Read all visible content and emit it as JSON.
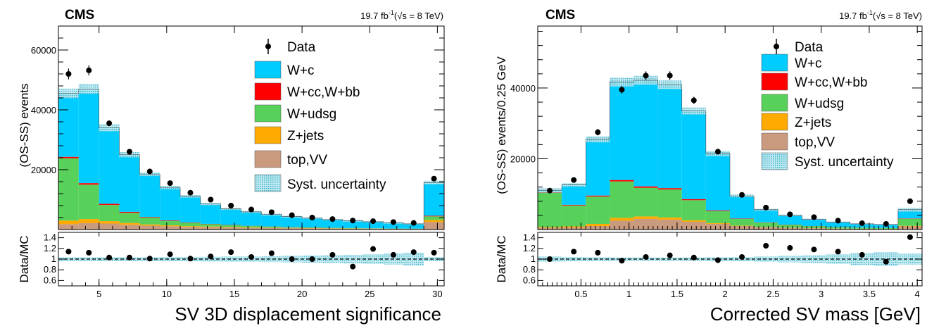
{
  "panels": [
    {
      "experiment": "CMS",
      "lumi_prefix": "19.7 fb",
      "lumi_exp": "-1",
      "lumi_energy": "(√s = 8 TeV)",
      "ylabel_main": "(OS-SS) events",
      "ylabel_ratio": "Data/MC",
      "xlabel": "SV 3D displacement significance"
    },
    {
      "experiment": "CMS",
      "lumi_prefix": "19.7 fb",
      "lumi_exp": "-1",
      "lumi_energy": "(√s = 8 TeV)",
      "ylabel_main": "(OS-SS) events/0.25 GeV",
      "ylabel_ratio": "Data/MC",
      "xlabel": "Corrected SV mass [GeV]"
    }
  ],
  "legend": {
    "data": "Data",
    "wc": "W+c",
    "wccbb": "W+cc,W+bb",
    "wudsg": "W+udsg",
    "zjets": "Z+jets",
    "topvv": "top,VV",
    "syst": "Syst. uncertainty"
  },
  "colors": {
    "wc": "#00ccff",
    "wccbb": "#ff0000",
    "wudsg": "#57d15a",
    "zjets": "#ffaa00",
    "topvv": "#c99a7e",
    "syst": "#5fc6d6",
    "data": "#000000"
  },
  "chart_data": [
    {
      "type": "bar",
      "stacked_histogram": true,
      "xlabel": "SV 3D displacement significance",
      "ylabel": "(OS-SS) events",
      "xlim": [
        2,
        30.5
      ],
      "ylim": [
        0,
        68000
      ],
      "yticks": [
        20000,
        40000,
        60000
      ],
      "xticks": [
        5,
        10,
        15,
        20,
        25,
        30
      ],
      "bin_edges": [
        2,
        3.5,
        5,
        6.5,
        8,
        9.5,
        11,
        12.5,
        14,
        15.5,
        17,
        18.5,
        20,
        21.5,
        23,
        24.5,
        26,
        27.5,
        29,
        30.5
      ],
      "series": [
        {
          "name": "top,VV",
          "values": [
            1800,
            2200,
            2000,
            1600,
            1300,
            1100,
            900,
            800,
            700,
            600,
            500,
            450,
            400,
            350,
            300,
            250,
            200,
            180,
            2500
          ]
        },
        {
          "name": "Z+jets",
          "values": [
            1200,
            1300,
            800,
            600,
            400,
            300,
            250,
            200,
            150,
            120,
            100,
            80,
            70,
            60,
            50,
            40,
            30,
            30,
            700
          ]
        },
        {
          "name": "W+udsg",
          "values": [
            20800,
            11500,
            5400,
            3400,
            2300,
            1500,
            1100,
            800,
            600,
            450,
            350,
            250,
            200,
            160,
            120,
            100,
            80,
            70,
            1200
          ]
        },
        {
          "name": "W+cc,W+bb",
          "values": [
            500,
            500,
            400,
            300,
            200,
            150,
            120,
            100,
            80,
            70,
            60,
            50,
            40,
            40,
            30,
            30,
            20,
            20,
            200
          ]
        },
        {
          "name": "W+c",
          "values": [
            21200,
            31500,
            25400,
            19100,
            14300,
            10950,
            8730,
            6600,
            5370,
            4660,
            3990,
            3470,
            3090,
            2690,
            2400,
            2180,
            1870,
            1600,
            11100
          ]
        }
      ],
      "syst_fraction": [
        0.035,
        0.035,
        0.035,
        0.035,
        0.035,
        0.04,
        0.04,
        0.045,
        0.05,
        0.05,
        0.055,
        0.06,
        0.065,
        0.07,
        0.08,
        0.09,
        0.1,
        0.12,
        0.04
      ],
      "data": [
        52000,
        53200,
        35500,
        26000,
        19400,
        15500,
        12300,
        10000,
        8000,
        6700,
        5800,
        4800,
        4000,
        3500,
        3000,
        2800,
        2500,
        2200,
        17000
      ],
      "data_err": [
        1800,
        1700,
        900,
        600,
        500,
        400,
        350,
        300,
        280,
        260,
        240,
        220,
        200,
        190,
        180,
        170,
        160,
        150,
        400
      ],
      "ratio": {
        "ylabel": "Data/MC",
        "ylim": [
          0.5,
          1.5
        ],
        "yticks": [
          0.6,
          0.8,
          1,
          1.2,
          1.4
        ],
        "values": [
          1.14,
          1.12,
          1.03,
          1.03,
          1.01,
          1.09,
          1.01,
          1.05,
          1.13,
          1.04,
          1.11,
          1.0,
          1.0,
          1.08,
          0.86,
          1.19,
          1.08,
          1.13,
          1.12
        ],
        "errors": [
          0.02,
          0.02,
          0.02,
          0.02,
          0.02,
          0.02,
          0.02,
          0.02,
          0.03,
          0.03,
          0.03,
          0.03,
          0.03,
          0.03,
          0.04,
          0.04,
          0.04,
          0.04,
          0.02
        ]
      }
    },
    {
      "type": "bar",
      "stacked_histogram": true,
      "xlabel": "Corrected SV mass [GeV]",
      "ylabel": "(OS-SS) events/0.25 GeV",
      "xlim": [
        0.05,
        4.05
      ],
      "ylim": [
        0,
        57500
      ],
      "yticks": [
        20000,
        40000
      ],
      "xticks": [
        0.5,
        1,
        1.5,
        2,
        2.5,
        3,
        3.5,
        4
      ],
      "bin_edges": [
        0.05,
        0.3,
        0.55,
        0.8,
        1.05,
        1.3,
        1.55,
        1.8,
        2.05,
        2.3,
        2.55,
        2.8,
        3.05,
        3.3,
        3.55,
        3.8,
        4.05
      ],
      "series": [
        {
          "name": "top,VV",
          "values": [
            500,
            600,
            1000,
            2500,
            3000,
            2800,
            2200,
            1600,
            1000,
            700,
            500,
            350,
            250,
            200,
            150,
            900
          ]
        },
        {
          "name": "Z+jets",
          "values": [
            200,
            300,
            600,
            800,
            700,
            600,
            400,
            200,
            100,
            60,
            40,
            30,
            20,
            20,
            20,
            150
          ]
        },
        {
          "name": "W+udsg",
          "values": [
            9700,
            5900,
            7700,
            10300,
            8100,
            7900,
            5700,
            3400,
            1900,
            1200,
            800,
            550,
            400,
            300,
            250,
            2000
          ]
        },
        {
          "name": "W+cc,W+bb",
          "values": [
            100,
            200,
            300,
            400,
            400,
            400,
            300,
            200,
            100,
            80,
            60,
            50,
            40,
            30,
            30,
            100
          ]
        },
        {
          "name": "W+c",
          "values": [
            600,
            5600,
            15900,
            27700,
            30000,
            29200,
            24900,
            16100,
            6400,
            3560,
            2600,
            1920,
            1390,
            1050,
            950,
            2450
          ]
        }
      ],
      "syst_fraction": [
        0.05,
        0.04,
        0.035,
        0.03,
        0.03,
        0.03,
        0.03,
        0.035,
        0.04,
        0.05,
        0.06,
        0.07,
        0.09,
        0.11,
        0.13,
        0.1
      ],
      "data": [
        11000,
        14000,
        27500,
        39500,
        43500,
        43500,
        36500,
        22000,
        9800,
        6200,
        4300,
        3500,
        2500,
        1800,
        1600,
        8000
      ],
      "data_err": [
        600,
        700,
        900,
        1100,
        1200,
        1200,
        1000,
        700,
        400,
        300,
        250,
        220,
        200,
        180,
        170,
        400
      ],
      "ratio": {
        "ylabel": "Data/MC",
        "ylim": [
          0.5,
          1.5
        ],
        "yticks": [
          0.6,
          0.8,
          1,
          1.2,
          1.4
        ],
        "values": [
          1.0,
          1.14,
          1.12,
          0.97,
          1.04,
          1.07,
          1.03,
          0.98,
          1.04,
          1.25,
          1.21,
          1.18,
          1.14,
          1.08,
          0.95,
          1.41
        ],
        "errors": [
          0.02,
          0.02,
          0.02,
          0.02,
          0.02,
          0.02,
          0.02,
          0.02,
          0.03,
          0.03,
          0.03,
          0.04,
          0.04,
          0.05,
          0.05,
          0.03
        ]
      }
    }
  ]
}
